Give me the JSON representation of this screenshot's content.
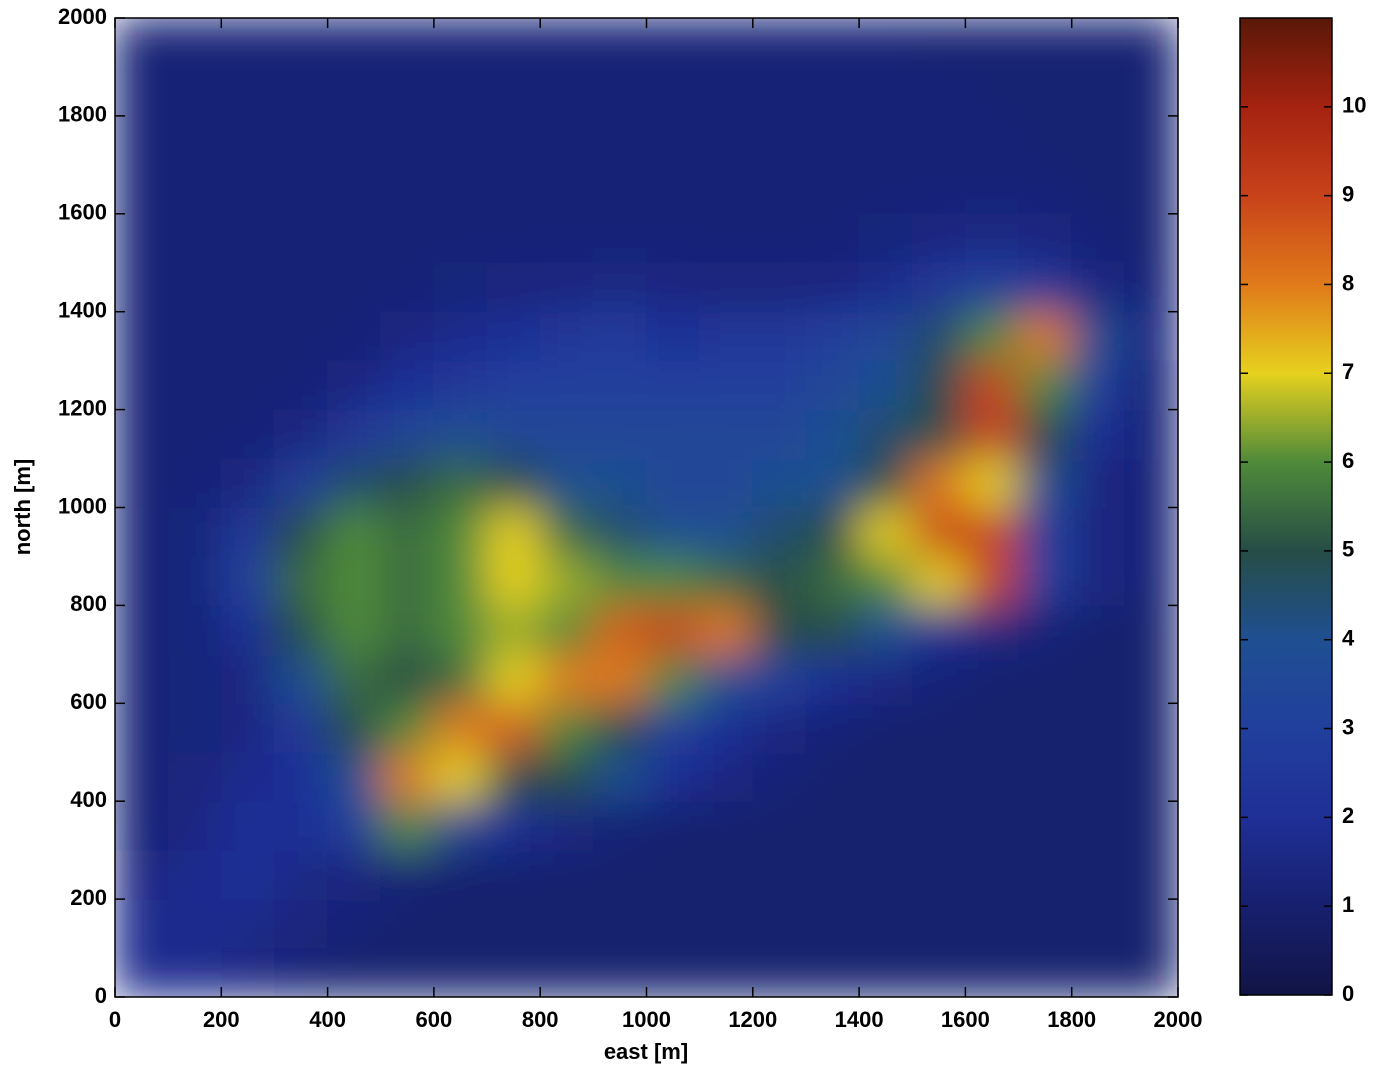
{
  "chart_data": {
    "type": "heatmap",
    "xlabel": "east [m]",
    "ylabel": "north [m]",
    "x": [
      50,
      150,
      250,
      350,
      450,
      550,
      650,
      750,
      850,
      950,
      1050,
      1150,
      1250,
      1350,
      1450,
      1550,
      1650,
      1750,
      1850,
      1950
    ],
    "y": [
      50,
      150,
      250,
      350,
      450,
      550,
      650,
      750,
      850,
      950,
      1050,
      1150,
      1250,
      1350,
      1450,
      1550,
      1650,
      1750,
      1850,
      1950
    ],
    "values": [
      [
        1.8,
        1.8,
        1.5,
        1.2,
        1,
        1,
        1,
        1,
        1,
        1,
        1,
        1,
        1,
        1,
        1,
        1,
        1,
        1,
        1,
        1
      ],
      [
        1.8,
        1.8,
        1.7,
        1.4,
        1.2,
        1,
        1,
        1,
        1,
        1,
        1,
        1,
        1,
        1,
        1,
        1,
        1,
        1,
        1,
        1
      ],
      [
        1.5,
        1.8,
        2,
        1.6,
        1.4,
        1.2,
        1,
        1,
        1,
        1,
        1,
        1,
        1,
        1,
        1,
        1,
        1,
        1,
        1,
        1
      ],
      [
        1.2,
        1.5,
        2,
        2,
        3,
        6,
        3.5,
        2,
        1.5,
        1.2,
        1,
        1,
        1,
        1,
        1,
        1,
        1,
        1,
        1,
        1
      ],
      [
        1.2,
        1.4,
        1.8,
        2,
        4,
        8,
        7,
        5,
        5,
        4,
        2,
        1.5,
        1.2,
        1,
        1,
        1,
        1,
        1,
        1,
        1
      ],
      [
        1.2,
        1.3,
        1.5,
        2.5,
        5,
        6,
        8,
        8.5,
        6,
        5,
        3,
        2,
        1.5,
        1.2,
        1,
        1,
        1,
        1,
        1,
        1
      ],
      [
        1.2,
        1.3,
        1.5,
        4,
        5.5,
        5,
        5.5,
        7,
        8,
        8,
        6,
        4,
        3,
        2,
        1.5,
        1.2,
        1,
        1,
        1,
        1
      ],
      [
        1.2,
        1.3,
        2,
        5,
        6,
        5.5,
        6,
        6.5,
        6,
        8.5,
        9,
        8,
        5,
        5,
        4,
        2,
        1.5,
        1.2,
        1,
        1
      ],
      [
        1.2,
        1.3,
        3,
        5.5,
        6,
        5.5,
        6,
        7,
        6.5,
        6,
        6,
        5.5,
        5,
        5.5,
        6,
        7,
        9,
        3,
        1.5,
        1.2
      ],
      [
        1.2,
        1.3,
        2.5,
        5,
        6,
        5.5,
        6,
        7,
        5.5,
        4.5,
        4,
        4,
        4.5,
        5,
        7,
        9,
        9,
        3,
        1.5,
        1.2
      ],
      [
        1.2,
        1.2,
        1.5,
        3,
        4.5,
        5,
        5.5,
        5,
        4,
        4,
        3.5,
        3.5,
        4,
        4,
        5,
        8,
        7,
        4,
        1.5,
        1.2
      ],
      [
        1.2,
        1.2,
        1.2,
        1.5,
        2.5,
        3.5,
        4,
        3.5,
        3.5,
        3.5,
        3.5,
        3.5,
        3.5,
        4,
        4.5,
        5,
        9,
        5,
        2,
        1.2
      ],
      [
        1.2,
        1.2,
        1.2,
        1.2,
        1.5,
        2,
        2.5,
        3,
        3,
        3,
        3,
        3,
        3,
        3.5,
        4,
        5,
        9,
        6,
        3,
        1.2
      ],
      [
        1.2,
        1.2,
        1.2,
        1.2,
        1.2,
        1.5,
        1.8,
        2,
        2.5,
        2.8,
        2,
        2.5,
        2.5,
        3,
        3.5,
        4.5,
        6,
        8,
        4,
        1.5
      ],
      [
        1.2,
        1.2,
        1.2,
        1.2,
        1.2,
        1.2,
        1.3,
        1.4,
        1.5,
        1.6,
        1.5,
        1.4,
        1.4,
        1.5,
        1.8,
        2.5,
        3,
        2.5,
        1.5,
        1.2
      ],
      [
        1.2,
        1.2,
        1.2,
        1.2,
        1.2,
        1.2,
        1.2,
        1.2,
        1.2,
        1.2,
        1.2,
        1.2,
        1.2,
        1.2,
        1.3,
        1.5,
        1.6,
        1.5,
        1.2,
        1.1
      ],
      [
        1.2,
        1.2,
        1.2,
        1.2,
        1.2,
        1.2,
        1.2,
        1.2,
        1.2,
        1.2,
        1.2,
        1.2,
        1.2,
        1.2,
        1.2,
        1.2,
        1.2,
        1.2,
        1.1,
        1.1
      ],
      [
        1.2,
        1.2,
        1.2,
        1.2,
        1.2,
        1.2,
        1.2,
        1.2,
        1.2,
        1.2,
        1.2,
        1.2,
        1.2,
        1.2,
        1.2,
        1.2,
        1.2,
        1.1,
        1.1,
        1.1
      ],
      [
        1.2,
        1.2,
        1.2,
        1.2,
        1.2,
        1.2,
        1.2,
        1.2,
        1.2,
        1.2,
        1.2,
        1.2,
        1.2,
        1.2,
        1.2,
        1.2,
        1.1,
        1.1,
        1.1,
        1.1
      ],
      [
        1.2,
        1.2,
        1.2,
        1.2,
        1.2,
        1.2,
        1.2,
        1.2,
        1.2,
        1.2,
        1.2,
        1.2,
        1.2,
        1.2,
        1.2,
        1.1,
        1.1,
        1.1,
        1.1,
        1.1
      ]
    ],
    "xlim": [
      0,
      2000
    ],
    "ylim": [
      0,
      2000
    ],
    "xticks": [
      0,
      200,
      400,
      600,
      800,
      1000,
      1200,
      1400,
      1600,
      1800,
      2000
    ],
    "yticks": [
      0,
      200,
      400,
      600,
      800,
      1000,
      1200,
      1400,
      1600,
      1800,
      2000
    ],
    "clim": [
      0,
      11
    ],
    "cticks": [
      0,
      1,
      2,
      3,
      4,
      5,
      6,
      7,
      8,
      9,
      10
    ],
    "colormap": [
      "#121446",
      "#17206e",
      "#1f2f96",
      "#213f9c",
      "#1f4f92",
      "#264d46",
      "#4f8a3a",
      "#e6d11e",
      "#e07a1a",
      "#c8421a",
      "#a52210",
      "#5a1808"
    ]
  }
}
